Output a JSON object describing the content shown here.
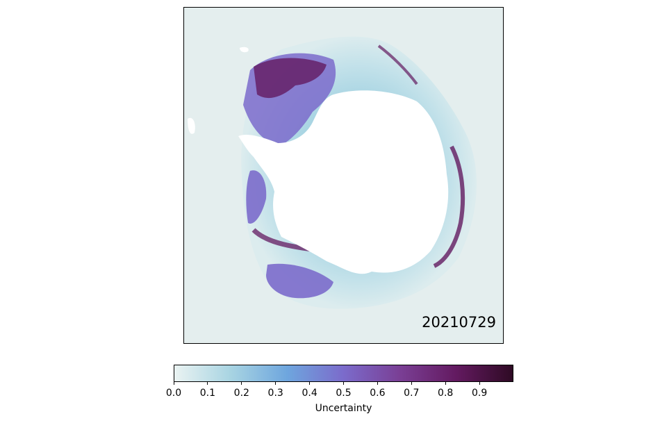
{
  "map": {
    "date_label": "20210729",
    "background_color": "#e4eeee",
    "land_color": "#ffffff"
  },
  "colorbar": {
    "label": "Uncertainty",
    "ticks": [
      "0.0",
      "0.1",
      "0.2",
      "0.3",
      "0.4",
      "0.5",
      "0.6",
      "0.7",
      "0.8",
      "0.9"
    ],
    "tick_values": [
      0.0,
      0.1,
      0.2,
      0.3,
      0.4,
      0.5,
      0.6,
      0.7,
      0.8,
      0.9
    ],
    "range": [
      0,
      1
    ],
    "colormap": [
      "#eaf3f2",
      "#a8d4e2",
      "#6ea6de",
      "#7b6bcb",
      "#7a3f95",
      "#631a60",
      "#2e0a24"
    ]
  }
}
